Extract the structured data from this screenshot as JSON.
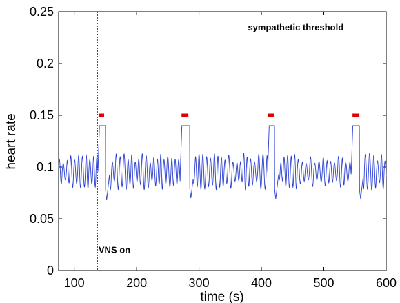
{
  "chart_data": {
    "type": "line",
    "title": "",
    "xlabel": "time (s)",
    "ylabel": "heart rate",
    "xlim": [
      75,
      600
    ],
    "ylim": [
      0,
      0.25
    ],
    "x_ticks": [
      "100",
      "200",
      "300",
      "400",
      "500",
      "600"
    ],
    "y_ticks": [
      "0",
      "0.05",
      "0.1",
      "0.15",
      "0.2",
      "0.25"
    ],
    "grid": false,
    "legend": "none",
    "colors": {
      "heart_rate": "#2a3fd1",
      "threshold_marks": "#e00000",
      "vns_line": "#000000"
    },
    "series": [
      {
        "style": "oscillating line",
        "baseline_oscillation": {
          "center": 0.0955,
          "amplitude_range": [
            0.008,
            0.018
          ],
          "period_s": [
            5,
            7
          ]
        },
        "plateaus": [
          {
            "start": 138,
            "end": 150,
            "value": 0.14
          },
          {
            "start": 270,
            "end": 285,
            "value": 0.14
          },
          {
            "start": 410,
            "end": 421,
            "value": 0.14
          },
          {
            "start": 544,
            "end": 557,
            "value": 0.14
          }
        ],
        "post_plateau_dips": [
          {
            "x": 152,
            "value": 0.068
          },
          {
            "x": 287,
            "value": 0.07
          },
          {
            "x": 423,
            "value": 0.069
          },
          {
            "x": 559,
            "value": 0.069
          }
        ]
      }
    ],
    "threshold_marks": [
      {
        "x_start": 139,
        "x_end": 148,
        "y": 0.15
      },
      {
        "x_start": 272,
        "x_end": 283,
        "y": 0.15
      },
      {
        "x_start": 410,
        "x_end": 420,
        "y": 0.15
      },
      {
        "x_start": 546,
        "x_end": 557,
        "y": 0.15
      }
    ],
    "vns_on_x": 137,
    "annotations": [
      {
        "text": "sympathetic threshold",
        "x": 455,
        "y": 0.232
      },
      {
        "text": "VNS on",
        "x": 139,
        "y": 0.017
      }
    ]
  }
}
